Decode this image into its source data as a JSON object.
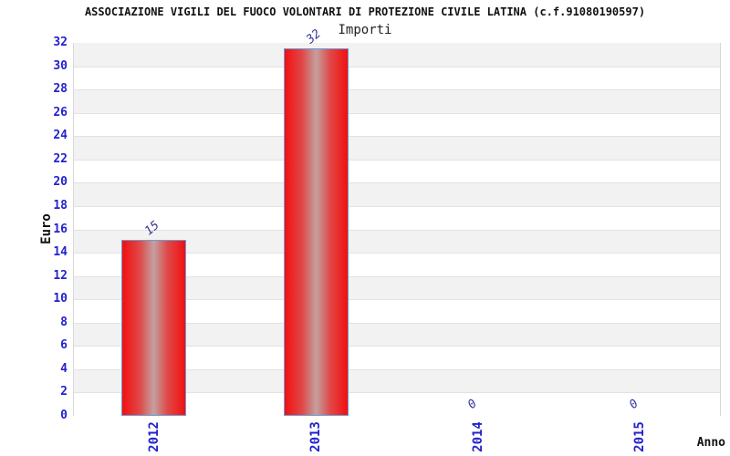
{
  "chart": {
    "title": "ASSOCIAZIONE VIGILI DEL FUOCO VOLONTARI DI PROTEZIONE CIVILE LATINA (c.f.91080190597)",
    "subtitle": "Importi",
    "ylabel": "Euro",
    "xlabel": "Anno"
  },
  "chart_data": {
    "type": "bar",
    "title": "ASSOCIAZIONE VIGILI DEL FUOCO VOLONTARI DI PROTEZIONE CIVILE LATINA (c.f.91080190597)",
    "subtitle": "Importi",
    "xlabel": "Anno",
    "ylabel": "Euro",
    "categories": [
      "2012",
      "2013",
      "2014",
      "2015"
    ],
    "values": [
      15,
      32,
      0,
      0
    ],
    "bar_display_values": [
      15.1,
      31.5,
      0,
      0
    ],
    "value_labels": [
      "15",
      "32",
      "0",
      "0"
    ],
    "ylim": [
      0,
      32
    ],
    "ytick_step": 2,
    "ytick_labels": [
      "0",
      "2",
      "4",
      "6",
      "8",
      "10",
      "12",
      "14",
      "16",
      "18",
      "20",
      "22",
      "24",
      "26",
      "28",
      "30",
      "32"
    ],
    "grid": "horizontal-bands-alternating",
    "legend": "none",
    "colors": {
      "bar_red": "#f21010",
      "bar_center": "#c4a0a0",
      "bar_border": "#64a0e0",
      "tick_blue": "#2222cc",
      "value_navy": "#333399",
      "band_gray": "#f2f2f2",
      "band_white": "#ffffff",
      "grid_line": "#e2e2e2",
      "plot_border": "#d8d8d8",
      "text": "#111111"
    }
  }
}
